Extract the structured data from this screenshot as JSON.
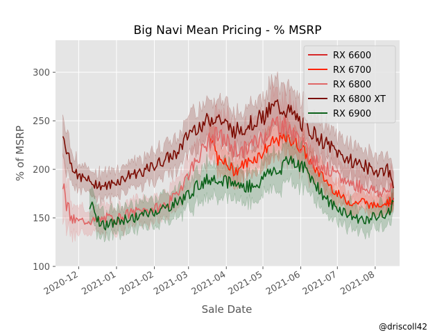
{
  "chart_data": {
    "type": "line",
    "title": "Big Navi Mean Pricing - % MSRP",
    "xlabel": "Sale Date",
    "ylabel": "% of MSRP",
    "credit": "@driscoll42",
    "x_range": [
      "2020-11-12",
      "2021-08-21"
    ],
    "ylim": [
      100,
      333
    ],
    "y_ticks": [
      100,
      150,
      200,
      250,
      300
    ],
    "x_ticks": [
      "2020-12",
      "2021-01",
      "2021-02",
      "2021-03",
      "2021-04",
      "2021-05",
      "2021-06",
      "2021-07",
      "2021-08"
    ],
    "grid": true,
    "legend_position": "top-right",
    "band": "shaded uncertainty band around each series",
    "series": [
      {
        "name": "RX 6600",
        "color": "#d62728",
        "x": [
          "2021-08-10",
          "2021-08-12",
          "2021-08-14",
          "2021-08-16"
        ],
        "y": [
          165,
          168,
          163,
          170
        ],
        "band": [
          8,
          9,
          8,
          10
        ]
      },
      {
        "name": "RX 6700",
        "color": "#ff2200",
        "x": [
          "2021-03-18",
          "2021-03-25",
          "2021-04-01",
          "2021-04-08",
          "2021-04-15",
          "2021-04-22",
          "2021-04-29",
          "2021-05-06",
          "2021-05-13",
          "2021-05-20",
          "2021-05-27",
          "2021-06-03",
          "2021-06-10",
          "2021-06-17",
          "2021-06-24",
          "2021-07-01",
          "2021-07-08",
          "2021-07-15",
          "2021-07-22",
          "2021-07-29",
          "2021-08-05",
          "2021-08-12",
          "2021-08-16"
        ],
        "y": [
          240,
          210,
          205,
          198,
          205,
          210,
          215,
          225,
          230,
          232,
          228,
          220,
          205,
          195,
          185,
          175,
          168,
          165,
          168,
          162,
          165,
          166,
          170
        ],
        "band": [
          15,
          15,
          14,
          13,
          13,
          13,
          14,
          15,
          15,
          15,
          14,
          13,
          12,
          12,
          11,
          10,
          10,
          10,
          9,
          9,
          9,
          9,
          9
        ]
      },
      {
        "name": "RX 6800",
        "color": "#e06666",
        "x": [
          "2020-11-18",
          "2020-11-25",
          "2020-12-02",
          "2020-12-09",
          "2020-12-16",
          "2020-12-23",
          "2020-12-30",
          "2021-01-06",
          "2021-01-13",
          "2021-01-20",
          "2021-01-27",
          "2021-02-03",
          "2021-02-10",
          "2021-02-17",
          "2021-02-24",
          "2021-03-03",
          "2021-03-10",
          "2021-03-17",
          "2021-03-24",
          "2021-03-31",
          "2021-04-07",
          "2021-04-14",
          "2021-04-21",
          "2021-04-28",
          "2021-05-05",
          "2021-05-12",
          "2021-05-19",
          "2021-05-26",
          "2021-06-02",
          "2021-06-09",
          "2021-06-16",
          "2021-06-23",
          "2021-06-30",
          "2021-07-07",
          "2021-07-14",
          "2021-07-21",
          "2021-07-28",
          "2021-08-04",
          "2021-08-11",
          "2021-08-16"
        ],
        "y": [
          178,
          148,
          146,
          148,
          146,
          150,
          148,
          152,
          155,
          157,
          158,
          160,
          163,
          170,
          185,
          200,
          215,
          228,
          235,
          230,
          222,
          218,
          225,
          230,
          240,
          248,
          245,
          236,
          225,
          212,
          205,
          200,
          193,
          188,
          185,
          182,
          180,
          176,
          178,
          180
        ],
        "band": [
          30,
          15,
          12,
          12,
          12,
          12,
          12,
          12,
          12,
          12,
          12,
          12,
          13,
          14,
          15,
          16,
          18,
          20,
          22,
          22,
          21,
          20,
          21,
          22,
          26,
          28,
          27,
          25,
          22,
          20,
          18,
          17,
          16,
          16,
          15,
          15,
          15,
          14,
          15,
          15
        ]
      },
      {
        "name": "RX 6800 XT",
        "color": "#7a0a00",
        "x": [
          "2020-11-18",
          "2020-11-25",
          "2020-12-02",
          "2020-12-09",
          "2020-12-16",
          "2020-12-23",
          "2020-12-30",
          "2021-01-06",
          "2021-01-13",
          "2021-01-20",
          "2021-01-27",
          "2021-02-03",
          "2021-02-10",
          "2021-02-17",
          "2021-02-24",
          "2021-03-03",
          "2021-03-10",
          "2021-03-17",
          "2021-03-24",
          "2021-03-31",
          "2021-04-07",
          "2021-04-14",
          "2021-04-21",
          "2021-04-28",
          "2021-05-05",
          "2021-05-12",
          "2021-05-19",
          "2021-05-26",
          "2021-06-02",
          "2021-06-09",
          "2021-06-16",
          "2021-06-23",
          "2021-06-30",
          "2021-07-07",
          "2021-07-14",
          "2021-07-21",
          "2021-07-28",
          "2021-08-04",
          "2021-08-11",
          "2021-08-16"
        ],
        "y": [
          235,
          205,
          192,
          188,
          185,
          182,
          186,
          190,
          195,
          197,
          200,
          205,
          210,
          215,
          225,
          240,
          245,
          250,
          255,
          246,
          240,
          242,
          248,
          252,
          258,
          265,
          262,
          255,
          248,
          240,
          232,
          225,
          218,
          212,
          208,
          205,
          200,
          198,
          200,
          185
        ],
        "band": [
          20,
          15,
          12,
          12,
          12,
          12,
          12,
          12,
          13,
          13,
          13,
          14,
          14,
          15,
          16,
          18,
          18,
          19,
          20,
          20,
          19,
          19,
          20,
          20,
          22,
          24,
          23,
          21,
          20,
          19,
          18,
          17,
          16,
          16,
          15,
          15,
          15,
          15,
          15,
          15
        ]
      },
      {
        "name": "RX 6900",
        "color": "#0a6018",
        "x": [
          "2020-12-10",
          "2020-12-17",
          "2020-12-24",
          "2020-12-31",
          "2021-01-07",
          "2021-01-14",
          "2021-01-21",
          "2021-01-28",
          "2021-02-04",
          "2021-02-11",
          "2021-02-18",
          "2021-02-25",
          "2021-03-04",
          "2021-03-11",
          "2021-03-18",
          "2021-03-25",
          "2021-04-01",
          "2021-04-08",
          "2021-04-15",
          "2021-04-22",
          "2021-04-29",
          "2021-05-06",
          "2021-05-13",
          "2021-05-20",
          "2021-05-27",
          "2021-06-03",
          "2021-06-10",
          "2021-06-17",
          "2021-06-24",
          "2021-07-01",
          "2021-07-08",
          "2021-07-15",
          "2021-07-22",
          "2021-07-29",
          "2021-08-05",
          "2021-08-12",
          "2021-08-16"
        ],
        "y": [
          165,
          148,
          142,
          145,
          148,
          150,
          152,
          155,
          158,
          160,
          165,
          170,
          178,
          185,
          190,
          192,
          188,
          185,
          182,
          183,
          186,
          200,
          195,
          212,
          208,
          202,
          192,
          178,
          165,
          160,
          155,
          150,
          148,
          150,
          152,
          155,
          168
        ],
        "band": [
          15,
          13,
          12,
          12,
          12,
          12,
          12,
          12,
          13,
          13,
          13,
          14,
          15,
          15,
          16,
          16,
          16,
          15,
          15,
          15,
          15,
          17,
          17,
          19,
          18,
          17,
          16,
          15,
          14,
          13,
          13,
          12,
          12,
          12,
          12,
          12,
          12
        ]
      }
    ]
  }
}
